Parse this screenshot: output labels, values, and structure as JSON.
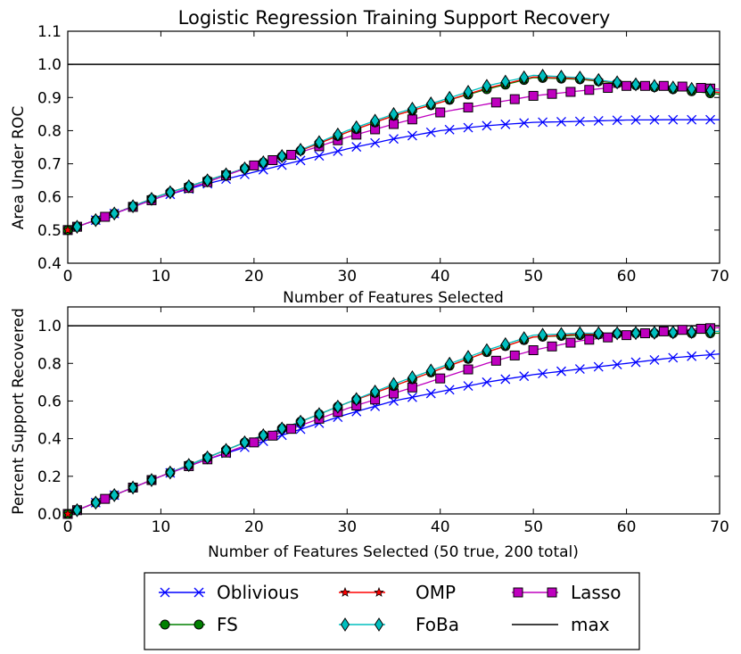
{
  "chart_data": [
    {
      "type": "line",
      "title": "Logistic Regression Training Support Recovery",
      "xlabel": "Number of Features Selected",
      "ylabel": "Area Under ROC",
      "xlim": [
        0,
        70
      ],
      "ylim": [
        0.4,
        1.1
      ],
      "xticks": [
        0,
        10,
        20,
        30,
        40,
        50,
        60,
        70
      ],
      "yticks": [
        0.4,
        0.5,
        0.6,
        0.7,
        0.8,
        0.9,
        1.0,
        1.1
      ],
      "tick_labels_x": [
        "0",
        "10",
        "20",
        "30",
        "40",
        "50",
        "60",
        "70"
      ],
      "tick_labels_y": [
        "0.4",
        "0.5",
        "0.6",
        "0.7",
        "0.8",
        "0.9",
        "1.0",
        "1.1"
      ],
      "max_line": 1.0,
      "series": [
        {
          "name": "Oblivious",
          "x": [
            0,
            5,
            10,
            15,
            20,
            25,
            30,
            35,
            40,
            45,
            50,
            55,
            60,
            65,
            70
          ],
          "values": [
            0.5,
            0.55,
            0.6,
            0.64,
            0.675,
            0.71,
            0.745,
            0.775,
            0.8,
            0.815,
            0.825,
            0.828,
            0.832,
            0.833,
            0.833
          ]
        },
        {
          "name": "FS",
          "x": [
            0,
            5,
            10,
            15,
            20,
            25,
            30,
            35,
            40,
            45,
            50,
            55,
            60,
            65,
            70
          ],
          "values": [
            0.5,
            0.55,
            0.605,
            0.65,
            0.695,
            0.74,
            0.795,
            0.845,
            0.885,
            0.925,
            0.96,
            0.955,
            0.94,
            0.925,
            0.91
          ]
        },
        {
          "name": "OMP",
          "x": [
            0,
            5,
            10,
            15,
            20,
            25,
            30,
            35,
            40,
            45,
            50,
            55,
            60,
            65,
            70
          ],
          "values": [
            0.5,
            0.55,
            0.605,
            0.65,
            0.695,
            0.74,
            0.795,
            0.845,
            0.885,
            0.928,
            0.962,
            0.957,
            0.942,
            0.928,
            0.915
          ]
        },
        {
          "name": "FoBa",
          "x": [
            0,
            5,
            10,
            15,
            20,
            25,
            30,
            35,
            40,
            45,
            50,
            55,
            60,
            65,
            70
          ],
          "values": [
            0.5,
            0.55,
            0.605,
            0.65,
            0.695,
            0.742,
            0.8,
            0.85,
            0.89,
            0.935,
            0.967,
            0.96,
            0.942,
            0.93,
            0.92
          ]
        },
        {
          "name": "Lasso",
          "x": [
            0,
            5,
            10,
            15,
            20,
            25,
            30,
            35,
            40,
            45,
            50,
            55,
            60,
            65,
            70
          ],
          "values": [
            0.5,
            0.55,
            0.6,
            0.645,
            0.695,
            0.735,
            0.78,
            0.82,
            0.855,
            0.88,
            0.905,
            0.92,
            0.935,
            0.935,
            0.925
          ]
        }
      ]
    },
    {
      "type": "line",
      "title": "",
      "xlabel": "Number of Features Selected (50 true, 200 total)",
      "ylabel": "Percent Support Recovered",
      "xlim": [
        0,
        70
      ],
      "ylim": [
        0.0,
        1.1
      ],
      "xticks": [
        0,
        10,
        20,
        30,
        40,
        50,
        60,
        70
      ],
      "yticks": [
        0.0,
        0.2,
        0.4,
        0.6,
        0.8,
        1.0
      ],
      "tick_labels_x": [
        "0",
        "10",
        "20",
        "30",
        "40",
        "50",
        "60",
        "70"
      ],
      "tick_labels_y": [
        "0.0",
        "0.2",
        "0.4",
        "0.6",
        "0.8",
        "1.0"
      ],
      "max_line": 1.0,
      "series": [
        {
          "name": "Oblivious",
          "x": [
            0,
            5,
            10,
            15,
            20,
            25,
            30,
            35,
            40,
            45,
            50,
            55,
            60,
            65,
            70
          ],
          "values": [
            0.0,
            0.1,
            0.2,
            0.29,
            0.37,
            0.45,
            0.53,
            0.6,
            0.65,
            0.7,
            0.74,
            0.77,
            0.8,
            0.83,
            0.85
          ]
        },
        {
          "name": "FS",
          "x": [
            0,
            5,
            10,
            15,
            20,
            25,
            30,
            35,
            40,
            45,
            50,
            55,
            60,
            65,
            70
          ],
          "values": [
            0.0,
            0.1,
            0.2,
            0.3,
            0.4,
            0.49,
            0.59,
            0.68,
            0.77,
            0.86,
            0.94,
            0.95,
            0.96,
            0.96,
            0.96
          ]
        },
        {
          "name": "OMP",
          "x": [
            0,
            5,
            10,
            15,
            20,
            25,
            30,
            35,
            40,
            45,
            50,
            55,
            60,
            65,
            70
          ],
          "values": [
            0.0,
            0.1,
            0.2,
            0.3,
            0.4,
            0.49,
            0.59,
            0.68,
            0.77,
            0.86,
            0.94,
            0.955,
            0.96,
            0.965,
            0.97
          ]
        },
        {
          "name": "FoBa",
          "x": [
            0,
            5,
            10,
            15,
            20,
            25,
            30,
            35,
            40,
            45,
            50,
            55,
            60,
            65,
            70
          ],
          "values": [
            0.0,
            0.1,
            0.2,
            0.3,
            0.4,
            0.49,
            0.59,
            0.69,
            0.78,
            0.87,
            0.95,
            0.96,
            0.96,
            0.965,
            0.97
          ]
        },
        {
          "name": "Lasso",
          "x": [
            0,
            5,
            10,
            15,
            20,
            25,
            30,
            35,
            40,
            45,
            50,
            55,
            60,
            65,
            70
          ],
          "values": [
            0.0,
            0.1,
            0.2,
            0.29,
            0.38,
            0.47,
            0.56,
            0.64,
            0.72,
            0.8,
            0.87,
            0.92,
            0.95,
            0.975,
            0.99
          ]
        }
      ]
    }
  ],
  "legend": {
    "placement": "bottom-center",
    "entries": [
      {
        "name": "Oblivious",
        "color": "#0000ff",
        "marker": "x"
      },
      {
        "name": "OMP",
        "color": "#ff0000",
        "marker": "star"
      },
      {
        "name": "Lasso",
        "color": "#bf00bf",
        "marker": "square"
      },
      {
        "name": "FS",
        "color": "#008000",
        "marker": "circle"
      },
      {
        "name": "FoBa",
        "color": "#00bfbf",
        "marker": "diamond"
      },
      {
        "name": "max",
        "color": "#000000",
        "marker": "none"
      }
    ]
  },
  "colors": {
    "Oblivious": "#0000ff",
    "FS": "#008000",
    "OMP": "#ff0000",
    "FoBa": "#00bfbf",
    "Lasso": "#bf00bf",
    "max": "#000000"
  }
}
